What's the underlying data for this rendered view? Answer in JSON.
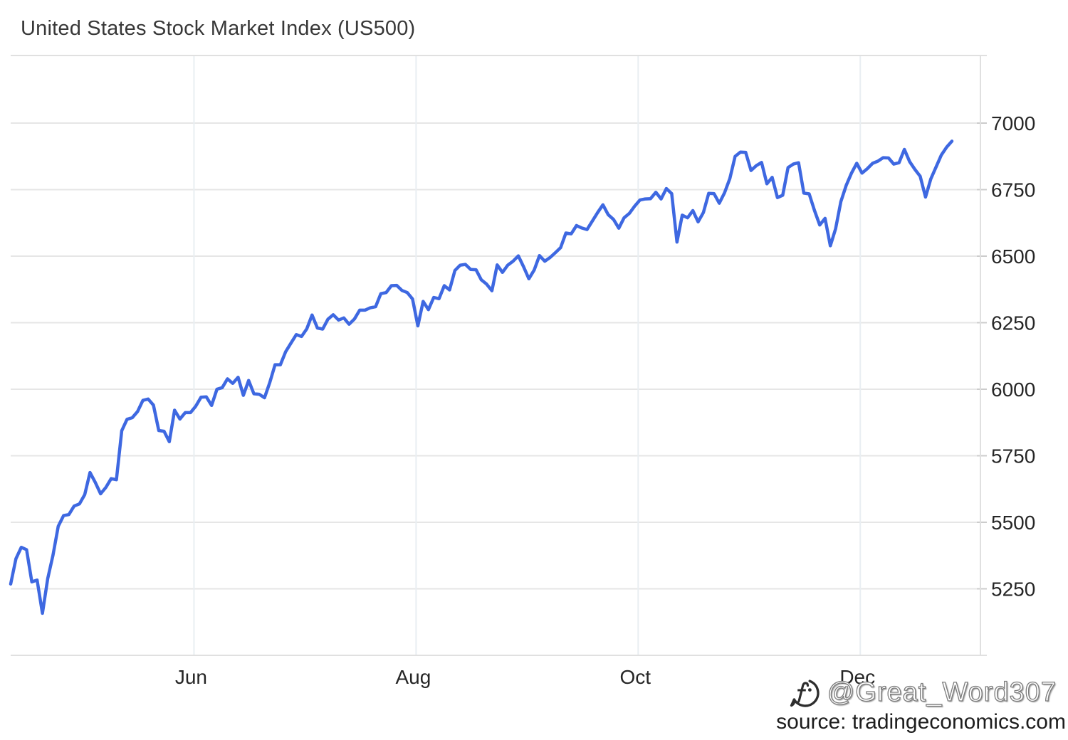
{
  "title": "United States Stock Market Index (US500)",
  "watermark": {
    "handle": "@Great_Word307",
    "logo": "f-speech-bubble-logo"
  },
  "source": {
    "text": "source: tradingeconomics.com"
  },
  "chart_data": {
    "type": "line",
    "title": "United States Stock Market Index (US500)",
    "series_name": "US500",
    "line_color": "#3E68E1",
    "grid": true,
    "legend": false,
    "ylim": [
      5000,
      7254
    ],
    "y_ticks": [
      5250,
      5500,
      5750,
      6000,
      6250,
      6500,
      6750,
      7000
    ],
    "x_ticks": [
      {
        "label": "Jun",
        "date_prefix": "2025-06"
      },
      {
        "label": "Aug",
        "date_prefix": "2025-08"
      },
      {
        "label": "Oct",
        "date_prefix": "2025-10"
      },
      {
        "label": "Dec",
        "date_prefix": "2025-12"
      }
    ],
    "dates": [
      "2025-04-10",
      "2025-04-11",
      "2025-04-14",
      "2025-04-15",
      "2025-04-16",
      "2025-04-17",
      "2025-04-21",
      "2025-04-22",
      "2025-04-23",
      "2025-04-24",
      "2025-04-25",
      "2025-04-28",
      "2025-04-29",
      "2025-04-30",
      "2025-05-01",
      "2025-05-02",
      "2025-05-05",
      "2025-05-06",
      "2025-05-07",
      "2025-05-08",
      "2025-05-09",
      "2025-05-12",
      "2025-05-13",
      "2025-05-14",
      "2025-05-15",
      "2025-05-16",
      "2025-05-19",
      "2025-05-20",
      "2025-05-21",
      "2025-05-22",
      "2025-05-23",
      "2025-05-27",
      "2025-05-28",
      "2025-05-29",
      "2025-05-30",
      "2025-06-02",
      "2025-06-03",
      "2025-06-04",
      "2025-06-05",
      "2025-06-06",
      "2025-06-09",
      "2025-06-10",
      "2025-06-11",
      "2025-06-12",
      "2025-06-13",
      "2025-06-16",
      "2025-06-17",
      "2025-06-18",
      "2025-06-20",
      "2025-06-23",
      "2025-06-24",
      "2025-06-25",
      "2025-06-26",
      "2025-06-27",
      "2025-06-30",
      "2025-07-01",
      "2025-07-02",
      "2025-07-03",
      "2025-07-07",
      "2025-07-08",
      "2025-07-09",
      "2025-07-10",
      "2025-07-11",
      "2025-07-14",
      "2025-07-15",
      "2025-07-16",
      "2025-07-17",
      "2025-07-18",
      "2025-07-21",
      "2025-07-22",
      "2025-07-23",
      "2025-07-24",
      "2025-07-25",
      "2025-07-28",
      "2025-07-29",
      "2025-07-30",
      "2025-07-31",
      "2025-08-01",
      "2025-08-04",
      "2025-08-05",
      "2025-08-06",
      "2025-08-07",
      "2025-08-08",
      "2025-08-11",
      "2025-08-12",
      "2025-08-13",
      "2025-08-14",
      "2025-08-15",
      "2025-08-18",
      "2025-08-19",
      "2025-08-20",
      "2025-08-21",
      "2025-08-22",
      "2025-08-25",
      "2025-08-26",
      "2025-08-27",
      "2025-08-28",
      "2025-08-29",
      "2025-09-02",
      "2025-09-03",
      "2025-09-04",
      "2025-09-05",
      "2025-09-08",
      "2025-09-09",
      "2025-09-10",
      "2025-09-11",
      "2025-09-12",
      "2025-09-15",
      "2025-09-16",
      "2025-09-17",
      "2025-09-18",
      "2025-09-19",
      "2025-09-22",
      "2025-09-23",
      "2025-09-24",
      "2025-09-25",
      "2025-09-26",
      "2025-09-29",
      "2025-09-30",
      "2025-10-01",
      "2025-10-02",
      "2025-10-03",
      "2025-10-06",
      "2025-10-07",
      "2025-10-08",
      "2025-10-09",
      "2025-10-10",
      "2025-10-13",
      "2025-10-14",
      "2025-10-15",
      "2025-10-16",
      "2025-10-17",
      "2025-10-20",
      "2025-10-21",
      "2025-10-22",
      "2025-10-23",
      "2025-10-24",
      "2025-10-27",
      "2025-10-28",
      "2025-10-29",
      "2025-10-30",
      "2025-10-31",
      "2025-11-03",
      "2025-11-04",
      "2025-11-05",
      "2025-11-06",
      "2025-11-07",
      "2025-11-10",
      "2025-11-11",
      "2025-11-12",
      "2025-11-13",
      "2025-11-14",
      "2025-11-17",
      "2025-11-18",
      "2025-11-19",
      "2025-11-20",
      "2025-11-21",
      "2025-11-24",
      "2025-11-25",
      "2025-11-26",
      "2025-11-28",
      "2025-12-01",
      "2025-12-02",
      "2025-12-03",
      "2025-12-04",
      "2025-12-05",
      "2025-12-08",
      "2025-12-09",
      "2025-12-10",
      "2025-12-11",
      "2025-12-12",
      "2025-12-15",
      "2025-12-16",
      "2025-12-17",
      "2025-12-18",
      "2025-12-19",
      "2025-12-22",
      "2025-12-23",
      "2025-12-24"
    ],
    "values": [
      5268,
      5363,
      5406,
      5397,
      5276,
      5283,
      5158,
      5288,
      5376,
      5485,
      5525,
      5529,
      5561,
      5569,
      5604,
      5687,
      5650,
      5607,
      5631,
      5664,
      5660,
      5844,
      5887,
      5893,
      5916,
      5958,
      5963,
      5940,
      5845,
      5842,
      5803,
      5921,
      5888,
      5912,
      5912,
      5936,
      5970,
      5971,
      5939,
      6000,
      6006,
      6039,
      6022,
      6045,
      5977,
      6033,
      5983,
      5981,
      5968,
      6025,
      6092,
      6092,
      6141,
      6173,
      6205,
      6198,
      6227,
      6279,
      6230,
      6226,
      6263,
      6280,
      6260,
      6268,
      6244,
      6264,
      6297,
      6297,
      6306,
      6310,
      6359,
      6363,
      6389,
      6390,
      6371,
      6363,
      6339,
      6238,
      6330,
      6299,
      6345,
      6340,
      6389,
      6373,
      6446,
      6466,
      6469,
      6450,
      6449,
      6411,
      6395,
      6370,
      6467,
      6439,
      6466,
      6481,
      6501,
      6460,
      6415,
      6448,
      6502,
      6481,
      6495,
      6513,
      6532,
      6587,
      6584,
      6615,
      6606,
      6600,
      6632,
      6664,
      6693,
      6656,
      6638,
      6605,
      6644,
      6661,
      6688,
      6711,
      6715,
      6716,
      6740,
      6715,
      6754,
      6735,
      6553,
      6654,
      6644,
      6671,
      6629,
      6664,
      6736,
      6735,
      6699,
      6738,
      6792,
      6875,
      6891,
      6890,
      6822,
      6840,
      6852,
      6772,
      6796,
      6720,
      6729,
      6833,
      6846,
      6851,
      6737,
      6734,
      6672,
      6617,
      6642,
      6539,
      6603,
      6705,
      6766,
      6812,
      6849,
      6812,
      6829,
      6849,
      6857,
      6870,
      6869,
      6846,
      6851,
      6901,
      6855,
      6826,
      6800,
      6722,
      6790,
      6835,
      6880,
      6910,
      6932
    ]
  },
  "colors": {
    "line": "#3E68E1",
    "grid_horizontal": "#e6e6e6",
    "grid_vertical": "#e9eef2",
    "border": "#e0e0e0",
    "tick": "#cccccc",
    "axis_label": "#262626"
  }
}
